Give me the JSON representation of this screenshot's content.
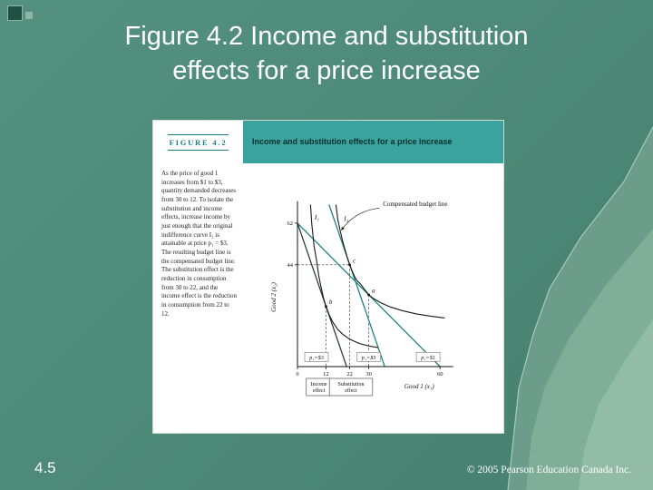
{
  "slide": {
    "title_lines": [
      "Figure 4.2 Income and substitution",
      "effects for a price increase"
    ],
    "page_number": "4.5",
    "copyright": "© 2005 Pearson Education Canada Inc."
  },
  "figure": {
    "kicker": "FIGURE 4.2",
    "header": "Income and substitution effects for a price increase",
    "caption": "As the price of good 1 increases from $1 to $3, quantity demanded decreases from 30 to 12. To isolate the substitution and income effects, increase income by just enough that the original indifference curve I₂ is attainable at price p₁ = $3. The resulting budget line is the compensated budget line. The substitution effect is the reduction in consumption from 30 to 22, and the income effect is the reduction in consumption from 22 to 12."
  },
  "colors": {
    "slide_bg": "#4e8a79",
    "mountain_far": "#6b9d8a",
    "mountain_mid": "#7fae99",
    "mountain_near": "#93bca6",
    "header_bar": "#3aa39e",
    "figure_teal": "#1b7e7e",
    "line_dark": "#223c3a"
  },
  "chart_data": {
    "type": "line",
    "title": "Income and substitution effects for a price increase",
    "xlabel": "Good 1 (x₁)",
    "ylabel": "Good 2 (x₂)",
    "xlim": [
      0,
      66
    ],
    "ylim": [
      0,
      70
    ],
    "x_ticks": [
      0,
      12,
      22,
      30,
      60
    ],
    "y_ticks": [
      44,
      62
    ],
    "budget_lines": [
      {
        "name": "original-budget-line",
        "price_label": "p₁=$1",
        "points": [
          [
            0,
            62
          ],
          [
            60,
            0
          ]
        ],
        "color": "teal",
        "label_pos": [
          55,
          4
        ]
      },
      {
        "name": "new-budget-line",
        "price_label": "p₁=$3",
        "points": [
          [
            0,
            62
          ],
          [
            20.7,
            0
          ]
        ],
        "color": "dark",
        "label_pos": [
          8,
          4
        ]
      },
      {
        "name": "compensated-budget-line",
        "price_label": "p₁=$3",
        "points": [
          [
            13.3,
            70
          ],
          [
            36.7,
            0
          ]
        ],
        "color": "teal",
        "label_pos": [
          30,
          4
        ]
      }
    ],
    "indifference_curves": [
      {
        "name": "I₁",
        "label_pos": [
          7.2,
          63.5
        ],
        "points": [
          [
            5.5,
            70
          ],
          [
            6,
            62
          ],
          [
            7,
            52
          ],
          [
            8,
            46
          ],
          [
            9,
            39
          ],
          [
            10,
            34
          ],
          [
            11,
            29.5
          ],
          [
            12,
            26
          ],
          [
            13.5,
            22
          ],
          [
            15,
            19
          ],
          [
            17,
            16
          ],
          [
            19,
            14
          ],
          [
            22,
            11.8
          ],
          [
            26,
            10
          ],
          [
            30,
            8.9
          ],
          [
            34,
            8.2
          ]
        ]
      },
      {
        "name": "I₂",
        "label_pos": [
          19.5,
          63
        ],
        "points": [
          [
            16.2,
            70
          ],
          [
            17,
            63.5
          ],
          [
            18,
            58.5
          ],
          [
            19,
            54.2
          ],
          [
            20,
            50.5
          ],
          [
            21,
            47.1
          ],
          [
            22,
            44
          ],
          [
            23,
            41.3
          ],
          [
            24,
            39
          ],
          [
            25,
            37.2
          ],
          [
            26.5,
            35.8
          ],
          [
            28,
            33.6
          ],
          [
            30,
            31
          ],
          [
            32,
            29.4
          ],
          [
            35,
            27.6
          ],
          [
            39,
            25.8
          ],
          [
            44,
            24.2
          ],
          [
            50,
            22.8
          ],
          [
            56,
            21.8
          ],
          [
            62,
            21
          ]
        ]
      }
    ],
    "points": [
      {
        "label": "b",
        "x": 12,
        "y": 26
      },
      {
        "label": "c",
        "x": 22,
        "y": 44
      },
      {
        "label": "a",
        "x": 30,
        "y": 31
      }
    ],
    "guides": [
      [
        [
          0,
          44
        ],
        [
          22,
          44
        ]
      ],
      [
        [
          22,
          44
        ],
        [
          22,
          0
        ]
      ],
      [
        [
          12,
          26
        ],
        [
          12,
          0
        ]
      ],
      [
        [
          30,
          31
        ],
        [
          30,
          0
        ]
      ]
    ],
    "annotation": {
      "text": "Compensated budget line",
      "text_pos": [
        36,
        69.5
      ],
      "arrow_from": [
        34.5,
        68.5
      ],
      "arrow_to": [
        18.5,
        59
      ]
    },
    "effect_labels": [
      {
        "lines": [
          "Income",
          "effect"
        ],
        "center_x": 9
      },
      {
        "lines": [
          "Substitution",
          "effect"
        ],
        "center_x": 22.5
      }
    ]
  }
}
